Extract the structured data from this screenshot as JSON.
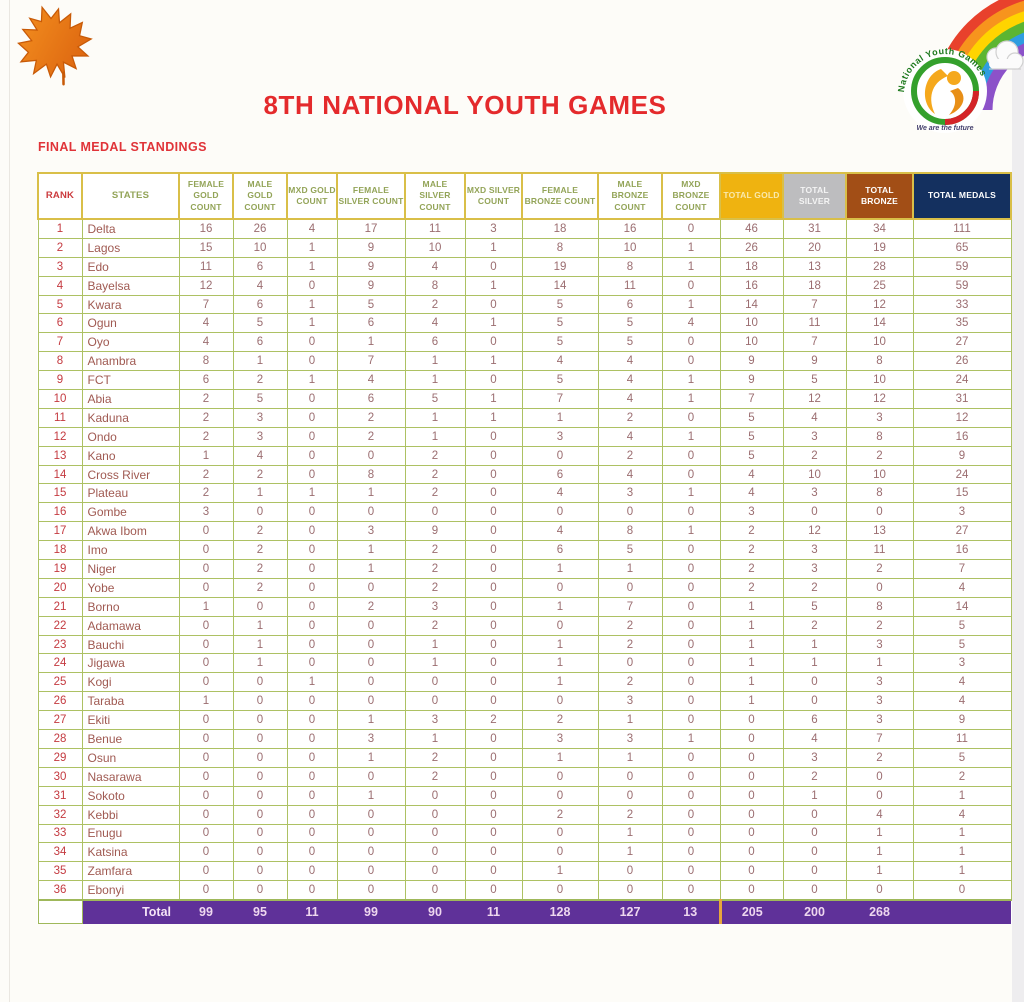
{
  "header": {
    "title": "8TH NATIONAL YOUTH GAMES",
    "subtitle": "FINAL MEDAL STANDINGS",
    "logo": {
      "arc_text": "National Youth Games",
      "tagline": "We are the future"
    }
  },
  "colors": {
    "accent_red": "#e42a2c",
    "header_green": "#93a458",
    "grid_green": "#adc163",
    "grid_gold": "#d9bf48",
    "gold_header": "#efb310",
    "silver_header": "#bdbdbf",
    "bronze_header": "#a24e16",
    "medals_header": "#14305f",
    "total_bar_purple": "#5f3199",
    "total_divider_orange": "#e7a63c",
    "rank_red": "#c43a40",
    "state_text": "#a05a52",
    "value_text": "#9b6d70"
  },
  "table": {
    "columns": [
      {
        "key": "rank",
        "label": "RANK"
      },
      {
        "key": "states",
        "label": "STATES"
      },
      {
        "key": "female_gold",
        "label": "FEMALE GOLD COUNT"
      },
      {
        "key": "male_gold",
        "label": "MALE GOLD COUNT"
      },
      {
        "key": "mxd_gold",
        "label": "MXD GOLD COUNT"
      },
      {
        "key": "female_silver",
        "label": "FEMALE SILVER COUNT"
      },
      {
        "key": "male_silver",
        "label": "MALE SILVER COUNT"
      },
      {
        "key": "mxd_silver",
        "label": "MXD SILVER COUNT"
      },
      {
        "key": "female_bronze",
        "label": "FEMALE BRONZE COUNT"
      },
      {
        "key": "male_bronze",
        "label": "MALE BRONZE COUNT"
      },
      {
        "key": "mxd_bronze",
        "label": "MXD BRONZE COUNT"
      },
      {
        "key": "total_gold",
        "label": "TOTAL GOLD",
        "header_bg": "#efb310",
        "header_fg": "#f9e9ad"
      },
      {
        "key": "total_silver",
        "label": "TOTAL SILVER",
        "header_bg": "#bdbdbf",
        "header_fg": "#f4f4f4"
      },
      {
        "key": "total_bronze",
        "label": "TOTAL BRONZE",
        "header_bg": "#a24e16",
        "header_fg": "#ffffff"
      },
      {
        "key": "total_medals",
        "label": "TOTAL MEDALS",
        "header_bg": "#14305f",
        "header_fg": "#ffffff"
      }
    ],
    "rows": [
      [
        1,
        "Delta",
        16,
        26,
        4,
        17,
        11,
        3,
        18,
        16,
        0,
        46,
        31,
        34,
        111
      ],
      [
        2,
        "Lagos",
        15,
        10,
        1,
        9,
        10,
        1,
        8,
        10,
        1,
        26,
        20,
        19,
        65
      ],
      [
        3,
        "Edo",
        11,
        6,
        1,
        9,
        4,
        0,
        19,
        8,
        1,
        18,
        13,
        28,
        59
      ],
      [
        4,
        "Bayelsa",
        12,
        4,
        0,
        9,
        8,
        1,
        14,
        11,
        0,
        16,
        18,
        25,
        59
      ],
      [
        5,
        "Kwara",
        7,
        6,
        1,
        5,
        2,
        0,
        5,
        6,
        1,
        14,
        7,
        12,
        33
      ],
      [
        6,
        "Ogun",
        4,
        5,
        1,
        6,
        4,
        1,
        5,
        5,
        4,
        10,
        11,
        14,
        35
      ],
      [
        7,
        "Oyo",
        4,
        6,
        0,
        1,
        6,
        0,
        5,
        5,
        0,
        10,
        7,
        10,
        27
      ],
      [
        8,
        "Anambra",
        8,
        1,
        0,
        7,
        1,
        1,
        4,
        4,
        0,
        9,
        9,
        8,
        26
      ],
      [
        9,
        "FCT",
        6,
        2,
        1,
        4,
        1,
        0,
        5,
        4,
        1,
        9,
        5,
        10,
        24
      ],
      [
        10,
        "Abia",
        2,
        5,
        0,
        6,
        5,
        1,
        7,
        4,
        1,
        7,
        12,
        12,
        31
      ],
      [
        11,
        "Kaduna",
        2,
        3,
        0,
        2,
        1,
        1,
        1,
        2,
        0,
        5,
        4,
        3,
        12
      ],
      [
        12,
        "Ondo",
        2,
        3,
        0,
        2,
        1,
        0,
        3,
        4,
        1,
        5,
        3,
        8,
        16
      ],
      [
        13,
        "Kano",
        1,
        4,
        0,
        0,
        2,
        0,
        0,
        2,
        0,
        5,
        2,
        2,
        9
      ],
      [
        14,
        "Cross River",
        2,
        2,
        0,
        8,
        2,
        0,
        6,
        4,
        0,
        4,
        10,
        10,
        24
      ],
      [
        15,
        "Plateau",
        2,
        1,
        1,
        1,
        2,
        0,
        4,
        3,
        1,
        4,
        3,
        8,
        15
      ],
      [
        16,
        "Gombe",
        3,
        0,
        0,
        0,
        0,
        0,
        0,
        0,
        0,
        3,
        0,
        0,
        3
      ],
      [
        17,
        "Akwa Ibom",
        0,
        2,
        0,
        3,
        9,
        0,
        4,
        8,
        1,
        2,
        12,
        13,
        27
      ],
      [
        18,
        "Imo",
        0,
        2,
        0,
        1,
        2,
        0,
        6,
        5,
        0,
        2,
        3,
        11,
        16
      ],
      [
        19,
        "Niger",
        0,
        2,
        0,
        1,
        2,
        0,
        1,
        1,
        0,
        2,
        3,
        2,
        7
      ],
      [
        20,
        "Yobe",
        0,
        2,
        0,
        0,
        2,
        0,
        0,
        0,
        0,
        2,
        2,
        0,
        4
      ],
      [
        21,
        "Borno",
        1,
        0,
        0,
        2,
        3,
        0,
        1,
        7,
        0,
        1,
        5,
        8,
        14
      ],
      [
        22,
        "Adamawa",
        0,
        1,
        0,
        0,
        2,
        0,
        0,
        2,
        0,
        1,
        2,
        2,
        5
      ],
      [
        23,
        "Bauchi",
        0,
        1,
        0,
        0,
        1,
        0,
        1,
        2,
        0,
        1,
        1,
        3,
        5
      ],
      [
        24,
        "Jigawa",
        0,
        1,
        0,
        0,
        1,
        0,
        1,
        0,
        0,
        1,
        1,
        1,
        3
      ],
      [
        25,
        "Kogi",
        0,
        0,
        1,
        0,
        0,
        0,
        1,
        2,
        0,
        1,
        0,
        3,
        4
      ],
      [
        26,
        "Taraba",
        1,
        0,
        0,
        0,
        0,
        0,
        0,
        3,
        0,
        1,
        0,
        3,
        4
      ],
      [
        27,
        "Ekiti",
        0,
        0,
        0,
        1,
        3,
        2,
        2,
        1,
        0,
        0,
        6,
        3,
        9
      ],
      [
        28,
        "Benue",
        0,
        0,
        0,
        3,
        1,
        0,
        3,
        3,
        1,
        0,
        4,
        7,
        11
      ],
      [
        29,
        "Osun",
        0,
        0,
        0,
        1,
        2,
        0,
        1,
        1,
        0,
        0,
        3,
        2,
        5
      ],
      [
        30,
        "Nasarawa",
        0,
        0,
        0,
        0,
        2,
        0,
        0,
        0,
        0,
        0,
        2,
        0,
        2
      ],
      [
        31,
        "Sokoto",
        0,
        0,
        0,
        1,
        0,
        0,
        0,
        0,
        0,
        0,
        1,
        0,
        1
      ],
      [
        32,
        "Kebbi",
        0,
        0,
        0,
        0,
        0,
        0,
        2,
        2,
        0,
        0,
        0,
        4,
        4
      ],
      [
        33,
        "Enugu",
        0,
        0,
        0,
        0,
        0,
        0,
        0,
        1,
        0,
        0,
        0,
        1,
        1
      ],
      [
        34,
        "Katsina",
        0,
        0,
        0,
        0,
        0,
        0,
        0,
        1,
        0,
        0,
        0,
        1,
        1
      ],
      [
        35,
        "Zamfara",
        0,
        0,
        0,
        0,
        0,
        0,
        1,
        0,
        0,
        0,
        0,
        1,
        1
      ],
      [
        36,
        "Ebonyi",
        0,
        0,
        0,
        0,
        0,
        0,
        0,
        0,
        0,
        0,
        0,
        0,
        0
      ]
    ],
    "total_row": {
      "label": "Total",
      "values": [
        99,
        95,
        11,
        99,
        90,
        11,
        128,
        127,
        13,
        205,
        200,
        268,
        ""
      ]
    }
  }
}
